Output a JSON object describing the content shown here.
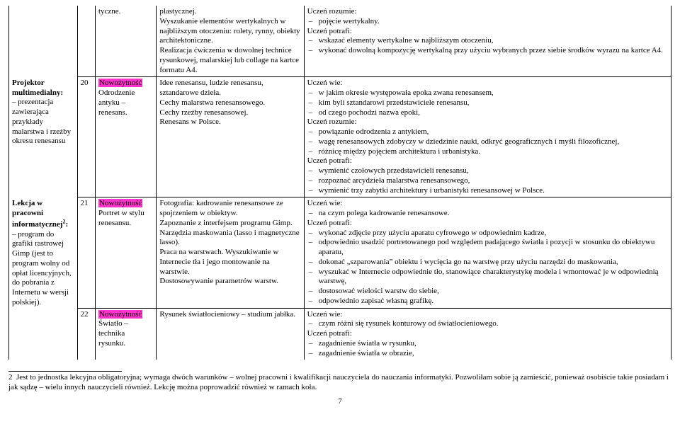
{
  "row0": {
    "c1": "",
    "c2": "",
    "c3": "tyczne.",
    "c4": "plastycznej.\nWyszukanie elementów wertykalnych w najbliższym otoczeniu: rolety, rynny, obiekty architektoniczne.\nRealizacja ćwiczenia w dowolnej technice rysunkowej, malarskiej lub collage na kartce formatu A4.",
    "c5_head1": "Uczeń rozumie:",
    "c5_li1": "pojęcie wertykalny.",
    "c5_head2": "Uczeń potrafi:",
    "c5_li2": "wskazać elementy wertykalne w najbliższym otoczeniu,",
    "c5_li3": "wykonać dowolną kompozycję wertykalną przy użyciu wybranych przez siebie środków wyrazu na kartce A4."
  },
  "row1": {
    "c1_bold": "Projektor multimedialny:",
    "c1_rest": "– prezentacja zawierająca przykłady malarstwa i rzeźby okresu renesansu",
    "c2": "20",
    "c3_hl": "Nowożytność",
    "c3_rest": "Odrodzenie antyku – renesans.",
    "c4": "Idee renesansu, ludzie renesansu, sztandarowe dzieła.\nCechy malarstwa renesansowego.\nCechy rzeźby renesansowej.\nRenesans w Polsce.",
    "c5_h1": "Uczeń wie:",
    "c5_a": [
      "w jakim okresie występowała epoka zwana renesansem,",
      "kim byli sztandarowi przedstawiciele renesansu,",
      "od czego pochodzi nazwa epoki,"
    ],
    "c5_h2": "Uczeń rozumie:",
    "c5_b": [
      "powiązanie odrodzenia z antykiem,",
      "wagę renesansowych zdobyczy w dziedzinie nauki, odkryć geograficznych i myśli filozoficznej,",
      "różnicę między pojęciem architektura i urbanistyka."
    ],
    "c5_h3": "Uczeń potrafi:",
    "c5_c": [
      "wymienić czołowych przedstawicieli renesansu,",
      "rozpoznać arcydzieła malarstwa renesansowego,",
      "wymienić trzy zabytki architektury i urbanistyki renesansowej w Polsce."
    ]
  },
  "row2": {
    "c1_bold": "Lekcja w pracowni informatycznej",
    "c1_sup": "2",
    "c1_bold2": ":",
    "c1_rest": "– program do grafiki rastrowej Gimp (jest to program wolny od opłat licencyjnych, do pobrania z Internetu w wersji polskiej).",
    "c2": "21",
    "c3_hl": "Nowożytność",
    "c3_rest": "Portret w stylu renesansu.",
    "c4": "Fotografia: kadrowanie renesansowe ze spojrzeniem w obiektyw.\nZapoznanie z interfejsem programu Gimp.\nNarzędzia maskowania (lasso i magnetyczne lasso).\nPraca na warstwach. Wyszukiwanie w Internecie tła i jego montowanie na warstwie.\nDostosowywanie parametrów warstw.",
    "c5_h1": "Uczeń wie:",
    "c5_a": [
      "na czym polega kadrowanie renesansowe."
    ],
    "c5_h2": "Uczeń potrafi:",
    "c5_b": [
      "wykonać zdjęcie przy użyciu aparatu cyfrowego w odpowiednim kadrze,",
      "odpowiednio usadzić portretowanego pod względem padającego światła i pozycji w stosunku do obiektywu aparatu,",
      "dokonać „szparowania” obiektu i wycięcia go na warstwę przy użyciu narzędzi do maskowania,",
      "wyszukać w Internecie odpowiednie tło, stanowiące charakterystykę modela i wmontować je w odpowiednią warstwę,",
      "dostosować wielości warstw do siebie,",
      "odpowiednio zapisać własną grafikę."
    ]
  },
  "row3": {
    "c2": "22",
    "c3_hl": "Nowożytność",
    "c3_rest": "Światło – technika rysunku.",
    "c4": "Rysunek światłocieniowy – studium jabłka.",
    "c5_h1": "Uczeń wie:",
    "c5_a": [
      "czym różni się rysunek konturowy od światłocieniowego."
    ],
    "c5_h2": "Uczeń potrafi:",
    "c5_b": [
      "zagadnienie światła w rysunku,",
      "zagadnienie światła w obrazie,"
    ]
  },
  "footnote_num": "2",
  "footnote": "Jest to jednostka lekcyjna obligatoryjna; wymaga dwóch warunków – wolnej pracowni i kwalifikacji nauczyciela do nauczania informatyki. Pozwoliłam sobie ją zamieścić, ponieważ osobiście takie posiadam i jak sądzę – wielu innych nauczycieli również. Lekcję można poprowadzić również w ramach koła.",
  "page": "7"
}
